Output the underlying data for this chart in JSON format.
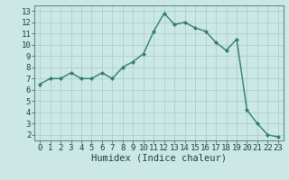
{
  "x": [
    0,
    1,
    2,
    3,
    4,
    5,
    6,
    7,
    8,
    9,
    10,
    11,
    12,
    13,
    14,
    15,
    16,
    17,
    18,
    19,
    20,
    21,
    22,
    23
  ],
  "y": [
    6.5,
    7.0,
    7.0,
    7.5,
    7.0,
    7.0,
    7.5,
    7.0,
    8.0,
    8.5,
    9.2,
    11.2,
    12.8,
    11.8,
    12.0,
    11.5,
    11.2,
    10.2,
    9.5,
    10.5,
    4.2,
    3.0,
    2.0,
    1.8
  ],
  "line_color": "#2e7d6e",
  "marker": "D",
  "marker_size": 2.0,
  "bg_color": "#cce8e4",
  "grid_color": "#aacfca",
  "xlabel": "Humidex (Indice chaleur)",
  "xlim": [
    -0.5,
    23.5
  ],
  "ylim": [
    1.5,
    13.5
  ],
  "xticks": [
    0,
    1,
    2,
    3,
    4,
    5,
    6,
    7,
    8,
    9,
    10,
    11,
    12,
    13,
    14,
    15,
    16,
    17,
    18,
    19,
    20,
    21,
    22,
    23
  ],
  "yticks": [
    2,
    3,
    4,
    5,
    6,
    7,
    8,
    9,
    10,
    11,
    12,
    13
  ],
  "tick_fontsize": 6.5,
  "xlabel_fontsize": 7.5,
  "font_color": "#1a4040",
  "linewidth": 1.0,
  "spine_color": "#5a9090"
}
